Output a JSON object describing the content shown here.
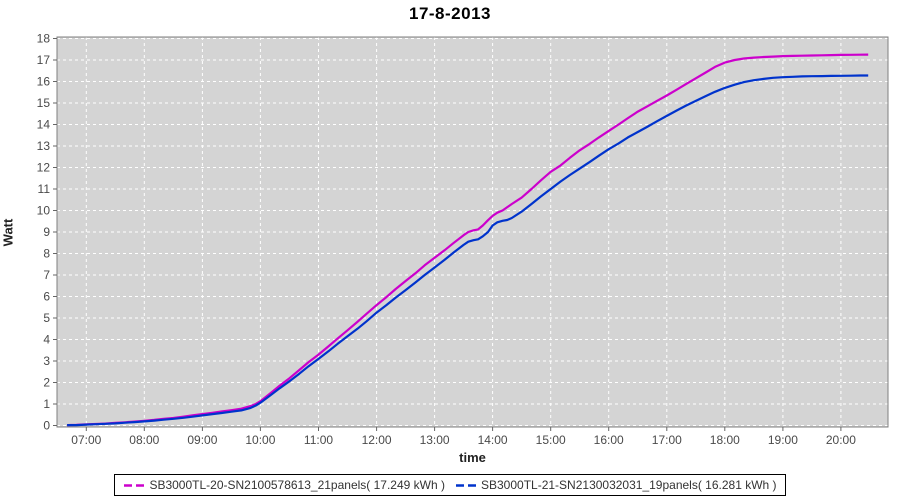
{
  "chart_data": {
    "type": "line",
    "title": "17-8-2013",
    "xlabel": "time",
    "ylabel": "Watt",
    "ylim": [
      0,
      18
    ],
    "y_tick_labels": [
      "0",
      "1",
      "2",
      "3",
      "4",
      "5",
      "6",
      "7",
      "8",
      "9",
      "10",
      "11",
      "12",
      "13",
      "14",
      "15",
      "16",
      "17",
      "18"
    ],
    "x_tick_hours": [
      7,
      8,
      9,
      10,
      11,
      12,
      13,
      14,
      15,
      16,
      17,
      18,
      19,
      20
    ],
    "x_tick_labels": [
      "07:00",
      "08:00",
      "09:00",
      "10:00",
      "11:00",
      "12:00",
      "13:00",
      "14:00",
      "15:00",
      "16:00",
      "17:00",
      "18:00",
      "19:00",
      "20:00"
    ],
    "x_range_hours": [
      6.5,
      20.8
    ],
    "grid": {
      "color": "#ffffff",
      "style": "dashed",
      "bg": "#d4d4d4",
      "border": "#7f7f7f"
    },
    "legend_position": "bottom",
    "series": [
      {
        "name": "SB3000TL-20-SN2100578613_21panels( 17.249 kWh )",
        "color": "#cc00cc",
        "final_kwh": "17.249",
        "points": [
          [
            6.67,
            0.02
          ],
          [
            6.83,
            0.03
          ],
          [
            7.0,
            0.05
          ],
          [
            7.17,
            0.07
          ],
          [
            7.33,
            0.09
          ],
          [
            7.5,
            0.12
          ],
          [
            7.67,
            0.15
          ],
          [
            7.83,
            0.18
          ],
          [
            8.0,
            0.22
          ],
          [
            8.17,
            0.26
          ],
          [
            8.33,
            0.31
          ],
          [
            8.5,
            0.35
          ],
          [
            8.67,
            0.41
          ],
          [
            8.83,
            0.47
          ],
          [
            9.0,
            0.53
          ],
          [
            9.17,
            0.59
          ],
          [
            9.33,
            0.65
          ],
          [
            9.5,
            0.71
          ],
          [
            9.67,
            0.78
          ],
          [
            9.83,
            0.9
          ],
          [
            9.92,
            1.0
          ],
          [
            10.0,
            1.13
          ],
          [
            10.17,
            1.5
          ],
          [
            10.33,
            1.85
          ],
          [
            10.5,
            2.2
          ],
          [
            10.67,
            2.58
          ],
          [
            10.83,
            2.95
          ],
          [
            11.0,
            3.3
          ],
          [
            11.17,
            3.68
          ],
          [
            11.33,
            4.05
          ],
          [
            11.5,
            4.43
          ],
          [
            11.67,
            4.82
          ],
          [
            11.83,
            5.2
          ],
          [
            12.0,
            5.6
          ],
          [
            12.17,
            5.97
          ],
          [
            12.33,
            6.35
          ],
          [
            12.5,
            6.72
          ],
          [
            12.67,
            7.08
          ],
          [
            12.83,
            7.45
          ],
          [
            13.0,
            7.8
          ],
          [
            13.17,
            8.15
          ],
          [
            13.33,
            8.5
          ],
          [
            13.5,
            8.85
          ],
          [
            13.58,
            9.0
          ],
          [
            13.67,
            9.08
          ],
          [
            13.75,
            9.12
          ],
          [
            13.83,
            9.3
          ],
          [
            13.92,
            9.55
          ],
          [
            14.0,
            9.75
          ],
          [
            14.08,
            9.9
          ],
          [
            14.17,
            10.0
          ],
          [
            14.33,
            10.3
          ],
          [
            14.5,
            10.6
          ],
          [
            14.67,
            11.0
          ],
          [
            14.83,
            11.4
          ],
          [
            15.0,
            11.8
          ],
          [
            15.17,
            12.1
          ],
          [
            15.33,
            12.45
          ],
          [
            15.5,
            12.8
          ],
          [
            15.67,
            13.1
          ],
          [
            15.83,
            13.4
          ],
          [
            16.0,
            13.7
          ],
          [
            16.17,
            14.0
          ],
          [
            16.33,
            14.3
          ],
          [
            16.5,
            14.6
          ],
          [
            16.67,
            14.85
          ],
          [
            16.83,
            15.1
          ],
          [
            17.0,
            15.35
          ],
          [
            17.17,
            15.62
          ],
          [
            17.33,
            15.88
          ],
          [
            17.5,
            16.15
          ],
          [
            17.67,
            16.42
          ],
          [
            17.83,
            16.68
          ],
          [
            18.0,
            16.88
          ],
          [
            18.17,
            17.0
          ],
          [
            18.33,
            17.07
          ],
          [
            18.5,
            17.11
          ],
          [
            18.67,
            17.14
          ],
          [
            18.83,
            17.16
          ],
          [
            19.0,
            17.18
          ],
          [
            19.17,
            17.19
          ],
          [
            19.33,
            17.2
          ],
          [
            19.5,
            17.21
          ],
          [
            19.67,
            17.22
          ],
          [
            19.83,
            17.23
          ],
          [
            20.0,
            17.235
          ],
          [
            20.17,
            17.24
          ],
          [
            20.33,
            17.245
          ],
          [
            20.47,
            17.249
          ]
        ]
      },
      {
        "name": "SB3000TL-21-SN2130032031_19panels( 16.281 kWh )",
        "color": "#0033cc",
        "final_kwh": "16.281",
        "points": [
          [
            6.67,
            0.02
          ],
          [
            6.83,
            0.02
          ],
          [
            7.0,
            0.04
          ],
          [
            7.17,
            0.06
          ],
          [
            7.33,
            0.08
          ],
          [
            7.5,
            0.1
          ],
          [
            7.67,
            0.13
          ],
          [
            7.83,
            0.16
          ],
          [
            8.0,
            0.19
          ],
          [
            8.17,
            0.23
          ],
          [
            8.33,
            0.27
          ],
          [
            8.5,
            0.31
          ],
          [
            8.67,
            0.36
          ],
          [
            8.83,
            0.41
          ],
          [
            9.0,
            0.47
          ],
          [
            9.17,
            0.53
          ],
          [
            9.33,
            0.58
          ],
          [
            9.5,
            0.64
          ],
          [
            9.67,
            0.7
          ],
          [
            9.83,
            0.82
          ],
          [
            9.92,
            0.93
          ],
          [
            10.0,
            1.06
          ],
          [
            10.17,
            1.4
          ],
          [
            10.33,
            1.73
          ],
          [
            10.5,
            2.06
          ],
          [
            10.67,
            2.41
          ],
          [
            10.83,
            2.76
          ],
          [
            11.0,
            3.1
          ],
          [
            11.17,
            3.45
          ],
          [
            11.33,
            3.8
          ],
          [
            11.5,
            4.15
          ],
          [
            11.67,
            4.5
          ],
          [
            11.83,
            4.85
          ],
          [
            12.0,
            5.25
          ],
          [
            12.17,
            5.6
          ],
          [
            12.33,
            5.95
          ],
          [
            12.5,
            6.3
          ],
          [
            12.67,
            6.65
          ],
          [
            12.83,
            7.0
          ],
          [
            13.0,
            7.35
          ],
          [
            13.17,
            7.7
          ],
          [
            13.33,
            8.05
          ],
          [
            13.5,
            8.4
          ],
          [
            13.58,
            8.55
          ],
          [
            13.67,
            8.62
          ],
          [
            13.75,
            8.66
          ],
          [
            13.83,
            8.8
          ],
          [
            13.92,
            9.0
          ],
          [
            14.0,
            9.3
          ],
          [
            14.08,
            9.45
          ],
          [
            14.17,
            9.52
          ],
          [
            14.25,
            9.56
          ],
          [
            14.33,
            9.65
          ],
          [
            14.5,
            9.95
          ],
          [
            14.67,
            10.3
          ],
          [
            14.83,
            10.65
          ],
          [
            15.0,
            11.0
          ],
          [
            15.17,
            11.35
          ],
          [
            15.33,
            11.65
          ],
          [
            15.5,
            11.95
          ],
          [
            15.67,
            12.25
          ],
          [
            15.83,
            12.55
          ],
          [
            16.0,
            12.85
          ],
          [
            16.17,
            13.12
          ],
          [
            16.33,
            13.4
          ],
          [
            16.5,
            13.65
          ],
          [
            16.67,
            13.9
          ],
          [
            16.83,
            14.15
          ],
          [
            17.0,
            14.4
          ],
          [
            17.17,
            14.65
          ],
          [
            17.33,
            14.88
          ],
          [
            17.5,
            15.1
          ],
          [
            17.67,
            15.32
          ],
          [
            17.83,
            15.52
          ],
          [
            18.0,
            15.7
          ],
          [
            18.17,
            15.85
          ],
          [
            18.33,
            15.97
          ],
          [
            18.5,
            16.06
          ],
          [
            18.67,
            16.12
          ],
          [
            18.83,
            16.17
          ],
          [
            19.0,
            16.2
          ],
          [
            19.17,
            16.22
          ],
          [
            19.33,
            16.235
          ],
          [
            19.5,
            16.245
          ],
          [
            19.67,
            16.253
          ],
          [
            19.83,
            16.26
          ],
          [
            20.0,
            16.265
          ],
          [
            20.17,
            16.272
          ],
          [
            20.33,
            16.277
          ],
          [
            20.47,
            16.281
          ]
        ]
      }
    ]
  }
}
